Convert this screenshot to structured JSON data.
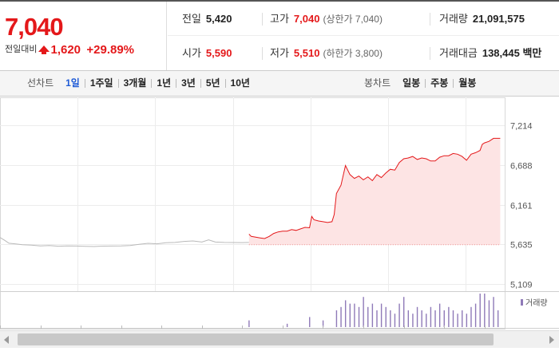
{
  "price": {
    "current": "7,040",
    "change_label": "전일대비",
    "change_value": "1,620",
    "change_rate": "+29.89%",
    "color_up": "#e4181a"
  },
  "summary": {
    "prev_close_label": "전일",
    "prev_close": "5,420",
    "high_label": "고가",
    "high": "7,040",
    "upper_limit_text": "(상한가 7,040)",
    "volume_label": "거래량",
    "volume": "21,091,575",
    "open_label": "시가",
    "open": "5,590",
    "low_label": "저가",
    "low": "5,510",
    "lower_limit_text": "(하한가 3,800)",
    "amount_label": "거래대금",
    "amount": "138,445 백만"
  },
  "tabs": {
    "line_title": "선차트",
    "line_tabs": [
      "1일",
      "1주일",
      "3개월",
      "1년",
      "3년",
      "5년",
      "10년"
    ],
    "active_line_tab": "1일",
    "candle_title": "봉차트",
    "candle_tabs": [
      "일봉",
      "주봉",
      "월봉"
    ]
  },
  "chart_data": {
    "type": "line",
    "y_ticks": [
      "7,214",
      "6,688",
      "6,161",
      "5,635",
      "5,109"
    ],
    "ylim": [
      5109,
      7214
    ],
    "grid": true,
    "prev_series": [
      [
        0,
        5726
      ],
      [
        2,
        5690
      ],
      [
        4,
        5650
      ],
      [
        7,
        5640
      ],
      [
        10,
        5630
      ],
      [
        14,
        5625
      ],
      [
        18,
        5615
      ],
      [
        22,
        5620
      ],
      [
        26,
        5610
      ],
      [
        30,
        5615
      ],
      [
        34,
        5612
      ],
      [
        38,
        5608
      ],
      [
        42,
        5606
      ],
      [
        46,
        5611
      ],
      [
        50,
        5612
      ],
      [
        54,
        5615
      ],
      [
        58,
        5620
      ],
      [
        62,
        5635
      ],
      [
        66,
        5648
      ],
      [
        70,
        5642
      ],
      [
        74,
        5656
      ],
      [
        78,
        5660
      ],
      [
        82,
        5674
      ],
      [
        86,
        5680
      ],
      [
        90,
        5665
      ],
      [
        93,
        5695
      ],
      [
        96,
        5665
      ],
      [
        100,
        5660
      ],
      [
        104,
        5659
      ],
      [
        108,
        5658
      ],
      [
        111,
        5660
      ]
    ],
    "today_series": [
      [
        111,
        5770
      ],
      [
        112,
        5740
      ],
      [
        114,
        5730
      ],
      [
        116,
        5720
      ],
      [
        118,
        5712
      ],
      [
        120,
        5740
      ],
      [
        122,
        5780
      ],
      [
        124,
        5800
      ],
      [
        126,
        5810
      ],
      [
        128,
        5810
      ],
      [
        130,
        5830
      ],
      [
        132,
        5820
      ],
      [
        134,
        5840
      ],
      [
        136,
        5860
      ],
      [
        138,
        5855
      ],
      [
        139,
        6005
      ],
      [
        140,
        5960
      ],
      [
        142,
        5945
      ],
      [
        144,
        5935
      ],
      [
        146,
        5925
      ],
      [
        148,
        5935
      ],
      [
        149,
        6030
      ],
      [
        150,
        6310
      ],
      [
        152,
        6420
      ],
      [
        154,
        6680
      ],
      [
        156,
        6560
      ],
      [
        158,
        6510
      ],
      [
        160,
        6540
      ],
      [
        162,
        6490
      ],
      [
        164,
        6530
      ],
      [
        166,
        6480
      ],
      [
        168,
        6560
      ],
      [
        170,
        6520
      ],
      [
        172,
        6580
      ],
      [
        174,
        6630
      ],
      [
        176,
        6620
      ],
      [
        178,
        6720
      ],
      [
        180,
        6770
      ],
      [
        182,
        6780
      ],
      [
        184,
        6800
      ],
      [
        186,
        6760
      ],
      [
        188,
        6780
      ],
      [
        190,
        6770
      ],
      [
        192,
        6740
      ],
      [
        194,
        6740
      ],
      [
        196,
        6790
      ],
      [
        198,
        6810
      ],
      [
        200,
        6810
      ],
      [
        202,
        6840
      ],
      [
        204,
        6830
      ],
      [
        206,
        6800
      ],
      [
        208,
        6750
      ],
      [
        210,
        6830
      ],
      [
        212,
        6850
      ],
      [
        214,
        6880
      ],
      [
        215,
        6960
      ],
      [
        216,
        6980
      ],
      [
        218,
        7000
      ],
      [
        220,
        7040
      ],
      [
        223,
        7040
      ]
    ],
    "volume_legend": "거래량",
    "volume_bars": [
      [
        111,
        2
      ],
      [
        128,
        1
      ],
      [
        138,
        3
      ],
      [
        144,
        2
      ],
      [
        150,
        5
      ],
      [
        152,
        6
      ],
      [
        154,
        8
      ],
      [
        156,
        7
      ],
      [
        158,
        7
      ],
      [
        160,
        6
      ],
      [
        162,
        9
      ],
      [
        164,
        6
      ],
      [
        166,
        7
      ],
      [
        168,
        5
      ],
      [
        170,
        7
      ],
      [
        172,
        6
      ],
      [
        174,
        5
      ],
      [
        176,
        4
      ],
      [
        178,
        7
      ],
      [
        180,
        9
      ],
      [
        182,
        5
      ],
      [
        184,
        4
      ],
      [
        186,
        6
      ],
      [
        188,
        5
      ],
      [
        190,
        4
      ],
      [
        192,
        6
      ],
      [
        194,
        5
      ],
      [
        196,
        7
      ],
      [
        198,
        5
      ],
      [
        200,
        6
      ],
      [
        202,
        5
      ],
      [
        204,
        4
      ],
      [
        206,
        5
      ],
      [
        208,
        4
      ],
      [
        210,
        6
      ],
      [
        212,
        7
      ],
      [
        214,
        10
      ],
      [
        216,
        12
      ],
      [
        218,
        8
      ],
      [
        220,
        9
      ],
      [
        222,
        5
      ]
    ]
  }
}
